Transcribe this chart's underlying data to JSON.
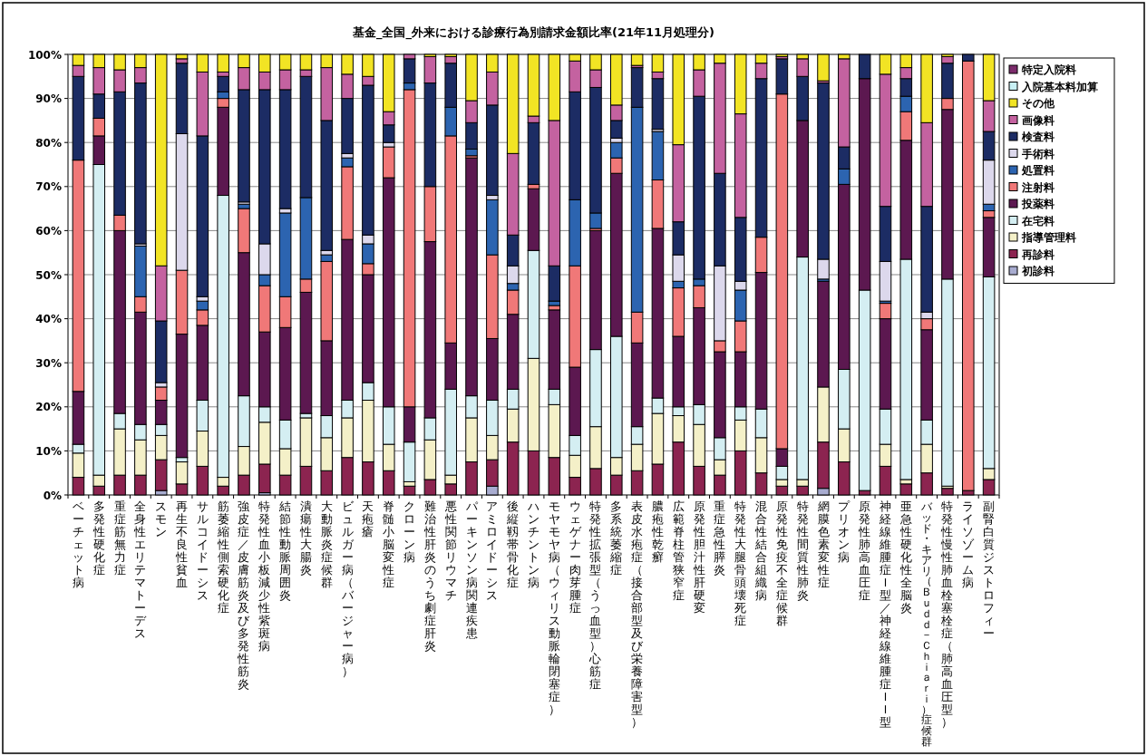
{
  "chart_data": {
    "type": "bar",
    "stacked": true,
    "title": "基金_全国_外来における診療行為別請求金額比率(21年11月処理分)",
    "categories": [
      "ベーチェット病",
      "多発性硬化症",
      "重症筋無力症",
      "全身性エリテマトーデス",
      "スモン",
      "再生不良性貧血",
      "サルコイドーシス",
      "筋萎縮性側索硬化症",
      "強皮症／皮膚筋炎及び多発性筋炎",
      "特発性血小板減少性紫斑病",
      "結節性動脈周囲炎",
      "潰瘍性大腸炎",
      "大動脈炎症候群",
      "ビュルガー病（バージャー病）",
      "天疱瘡",
      "脊髄小脳変性症",
      "クローン病",
      "難治性肝炎のうち劇症肝炎",
      "悪性関節リウマチ",
      "パーキンソン病関連疾患",
      "アミロイドーシス",
      "後縦靱帯骨化症",
      "ハンチントン病",
      "モヤモヤ病（ウィリス動脈輪閉塞症）",
      "ウェゲナー肉芽腫症",
      "特発性拡張型（うっ血型）心筋症",
      "多系統萎縮症",
      "表皮水疱症（接合部型及び栄養障害型）",
      "膿疱性乾癬",
      "広範脊柱管狭窄症",
      "原発性胆汁性肝硬変",
      "重症急性膵炎",
      "特発性大腿骨頭壊死症",
      "混合性結合組織病",
      "原発性免疫不全症候群",
      "特発性間質性肺炎",
      "網膜色素変性症",
      "プリオン病",
      "原発性肺高血圧症",
      "神経線維腫症Ｉ型／神経線維腫症ＩＩ型",
      "亜急性硬化性全脳炎",
      "バッド・キアリ（Ｂｕｄｄ－Ｃｈｉａｒｉ）症候群",
      "特発性慢性肺血栓塞栓症（肺高血圧型）",
      "ライソゾーム病",
      "副腎白質ジストロフィー"
    ],
    "ylim": [
      0,
      100
    ],
    "yticks": [
      {
        "value": 0,
        "label": "0%"
      },
      {
        "value": 10,
        "label": "10%"
      },
      {
        "value": 20,
        "label": "20%"
      },
      {
        "value": 30,
        "label": "30%"
      },
      {
        "value": 40,
        "label": "40%"
      },
      {
        "value": 50,
        "label": "50%"
      },
      {
        "value": 60,
        "label": "60%"
      },
      {
        "value": 70,
        "label": "70%"
      },
      {
        "value": 80,
        "label": "80%"
      },
      {
        "value": 90,
        "label": "90%"
      },
      {
        "value": 100,
        "label": "100%"
      }
    ],
    "grid": "y",
    "legend": "right",
    "series": [
      {
        "name": "初診料",
        "color": "#a8acd0",
        "values": [
          0,
          0,
          0,
          0,
          1,
          0,
          0,
          0,
          0,
          0.5,
          0,
          0,
          0,
          0,
          0,
          0,
          0,
          0,
          0,
          0,
          2,
          0,
          0,
          0,
          0,
          0,
          0,
          0,
          0,
          0,
          0,
          0,
          0,
          0,
          0,
          0,
          1.5,
          0,
          0,
          0,
          0,
          0,
          0,
          0,
          0
        ]
      },
      {
        "name": "再診料",
        "color": "#8c2450",
        "values": [
          4,
          2,
          4.5,
          4.5,
          7,
          2.5,
          6.5,
          2,
          4.5,
          6.5,
          4.5,
          6.5,
          5.5,
          8.5,
          7.5,
          5.5,
          2,
          3.5,
          2.5,
          7.5,
          6,
          12,
          10,
          8.5,
          4,
          6,
          4.5,
          5.5,
          7,
          12,
          6.5,
          4.5,
          10,
          5,
          2,
          2,
          10.5,
          7.5,
          1,
          6.5,
          2.5,
          5,
          1.5,
          1,
          3.5
        ]
      },
      {
        "name": "指導管理料",
        "color": "#f4f0c8",
        "values": [
          5.5,
          2.5,
          10.5,
          8,
          5.5,
          5,
          8,
          2,
          6.5,
          9.5,
          6,
          11,
          7.5,
          9,
          14,
          6,
          1,
          9,
          2,
          10,
          5.5,
          7.5,
          21,
          12,
          5,
          9.5,
          4,
          6,
          11.5,
          6,
          9.5,
          3.5,
          7,
          8,
          1.5,
          1.5,
          12.5,
          7.5,
          0,
          5,
          1,
          6.5,
          0.5,
          0,
          2.5
        ]
      },
      {
        "name": "在宅料",
        "color": "#d4eef2",
        "values": [
          2,
          70.5,
          3.5,
          3.5,
          2.5,
          1,
          7,
          64,
          11.5,
          3.5,
          6.5,
          1,
          5,
          4,
          4,
          8.5,
          9,
          5,
          19.5,
          5,
          8,
          4.5,
          24.5,
          3.5,
          4.5,
          17.5,
          27.5,
          4,
          3.5,
          2,
          4.5,
          5,
          3,
          6.5,
          3,
          50.5,
          0,
          13.5,
          45.5,
          8,
          50,
          5.5,
          47,
          0,
          43.5
        ]
      },
      {
        "name": "投薬料",
        "color": "#5c1850",
        "values": [
          12,
          6.5,
          41.5,
          25.5,
          5.5,
          28,
          17,
          20,
          32.5,
          17,
          21,
          27.5,
          17,
          36.5,
          24.5,
          52,
          8,
          40,
          10.5,
          54,
          14,
          17,
          14,
          18,
          15.5,
          27,
          37,
          19,
          38.5,
          16,
          22,
          19.5,
          12.5,
          31,
          4,
          31,
          24,
          42,
          48,
          20.5,
          27,
          20.5,
          38.5,
          0,
          13.5
        ]
      },
      {
        "name": "注射料",
        "color": "#f07878",
        "values": [
          52.5,
          4,
          3.5,
          3.5,
          3,
          14.5,
          3.5,
          2,
          10,
          10.5,
          7,
          3,
          18,
          16.5,
          2.5,
          7,
          72,
          12.5,
          47,
          0.5,
          19,
          5.5,
          1,
          1,
          23,
          0.5,
          3.5,
          7,
          11,
          11,
          5,
          2.5,
          7,
          8,
          80.5,
          0,
          0,
          0,
          0,
          3.5,
          6.5,
          2.5,
          2.5,
          97.5,
          1.5
        ]
      },
      {
        "name": "処置料",
        "color": "#2c64b0",
        "values": [
          0,
          0,
          0,
          11.5,
          0,
          0,
          2,
          1.5,
          1,
          2.5,
          19,
          18.5,
          1.5,
          2,
          4.5,
          0,
          1.5,
          0,
          6.5,
          1.5,
          12.5,
          1.5,
          0,
          1,
          15,
          3.5,
          3.5,
          46.5,
          11,
          1.5,
          1.5,
          0,
          7,
          0,
          0,
          0,
          0.5,
          3.5,
          0,
          0.5,
          3.5,
          0,
          0,
          0,
          1.5
        ]
      },
      {
        "name": "手術料",
        "color": "#dcd8ec",
        "values": [
          0,
          0,
          0,
          0.5,
          1,
          31,
          1,
          0,
          0.5,
          7,
          1,
          0,
          1,
          1,
          2,
          1,
          0,
          0,
          0,
          0,
          1,
          4,
          0,
          0,
          0,
          0,
          1,
          0,
          0.5,
          6,
          0,
          17,
          2,
          0,
          0,
          0,
          4.5,
          0,
          0,
          9,
          0,
          1.5,
          0,
          0,
          10
        ]
      },
      {
        "name": "検査料",
        "color": "#1c2c64",
        "values": [
          19,
          5.5,
          28,
          36.5,
          14,
          16,
          36.5,
          3.5,
          25.5,
          35,
          27,
          27.5,
          29.5,
          12.5,
          34,
          4,
          5.5,
          23.5,
          10,
          6,
          20.5,
          7,
          14,
          8,
          24.5,
          28.5,
          4,
          9,
          11.5,
          7.5,
          41.5,
          21,
          14.5,
          36,
          8,
          10,
          40,
          5,
          5.5,
          12.5,
          4,
          24,
          8,
          1.5,
          6.5
        ]
      },
      {
        "name": "画像料",
        "color": "#c462a0",
        "values": [
          2.5,
          6,
          5,
          3.5,
          12.5,
          1,
          14.5,
          1,
          5,
          4,
          4.5,
          1.5,
          12,
          5.5,
          2,
          3,
          1,
          6,
          1.5,
          5,
          7.5,
          18.5,
          1.5,
          33,
          7,
          4,
          3.5,
          0.5,
          1.5,
          17.5,
          6,
          25,
          23.5,
          3.5,
          0.5,
          4,
          0.5,
          20,
          0,
          30,
          2.5,
          19,
          1.5,
          0,
          7
        ]
      },
      {
        "name": "その他",
        "color": "#f2e424",
        "values": [
          2.5,
          3,
          3.5,
          3,
          48,
          1,
          4,
          4,
          3,
          4,
          3.5,
          3.5,
          3,
          4.5,
          5,
          13,
          0,
          0.5,
          0.5,
          10.5,
          4,
          22.5,
          14,
          15,
          1.5,
          3.5,
          11.5,
          2.5,
          4,
          20.5,
          3.5,
          2,
          13.5,
          2,
          0.5,
          1,
          6,
          1,
          0,
          4.5,
          3,
          15.5,
          0.5,
          0,
          10.5
        ]
      },
      {
        "name": "入院基本料加算",
        "color": "#c8f0f4",
        "values": [
          0,
          0,
          0,
          0,
          0,
          0,
          0,
          0,
          0,
          0,
          0,
          0,
          0,
          0,
          0,
          0,
          0,
          0,
          0,
          0,
          0,
          0,
          0,
          0,
          0,
          0,
          0,
          0,
          0,
          0,
          0,
          0,
          0,
          0,
          0,
          0,
          0,
          0,
          0,
          0,
          0,
          0,
          0,
          0,
          0
        ]
      },
      {
        "name": "特定入院料",
        "color": "#7c2c6c",
        "values": [
          0,
          0,
          0,
          0,
          0,
          0,
          0,
          0,
          0,
          0,
          0,
          0,
          0,
          0,
          0,
          0,
          0,
          0,
          0,
          0,
          0,
          0,
          0,
          0,
          0,
          0,
          0,
          0,
          0,
          0,
          0,
          0,
          0,
          0,
          0,
          0,
          0,
          0,
          0,
          0,
          0,
          0,
          0,
          0,
          0
        ]
      }
    ]
  }
}
